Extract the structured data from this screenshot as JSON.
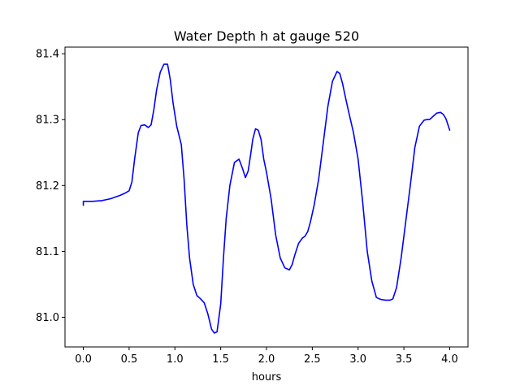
{
  "chart_data": {
    "type": "line",
    "title": "Water Depth h at gauge 520",
    "xlabel": "hours",
    "ylabel": "",
    "xlim": [
      -0.2,
      4.2
    ],
    "ylim": [
      80.955,
      81.41
    ],
    "xticks": [
      0.0,
      0.5,
      1.0,
      1.5,
      2.0,
      2.5,
      3.0,
      3.5,
      4.0
    ],
    "xtick_labels": [
      "0.0",
      "0.5",
      "1.0",
      "1.5",
      "2.0",
      "2.5",
      "3.0",
      "3.5",
      "4.0"
    ],
    "yticks": [
      81.0,
      81.1,
      81.2,
      81.3,
      81.4
    ],
    "ytick_labels": [
      "81.0",
      "81.1",
      "81.2",
      "81.3",
      "81.4"
    ],
    "grid": false,
    "series": [
      {
        "color": "#0000ff",
        "x": [
          0.0,
          0.0,
          0.1,
          0.2,
          0.3,
          0.4,
          0.45,
          0.5,
          0.53,
          0.56,
          0.6,
          0.63,
          0.67,
          0.71,
          0.74,
          0.77,
          0.8,
          0.84,
          0.88,
          0.92,
          0.95,
          0.98,
          1.02,
          1.07,
          1.1,
          1.13,
          1.16,
          1.2,
          1.24,
          1.28,
          1.32,
          1.36,
          1.4,
          1.43,
          1.46,
          1.5,
          1.53,
          1.56,
          1.6,
          1.65,
          1.7,
          1.74,
          1.77,
          1.8,
          1.83,
          1.85,
          1.88,
          1.91,
          1.94,
          1.97,
          2.0,
          2.05,
          2.1,
          2.15,
          2.2,
          2.25,
          2.28,
          2.31,
          2.35,
          2.39,
          2.42,
          2.45,
          2.48,
          2.52,
          2.57,
          2.62,
          2.67,
          2.72,
          2.77,
          2.8,
          2.83,
          2.86,
          2.9,
          2.95,
          3.0,
          3.05,
          3.1,
          3.15,
          3.2,
          3.25,
          3.3,
          3.35,
          3.38,
          3.42,
          3.47,
          3.52,
          3.57,
          3.62,
          3.67,
          3.72,
          3.75,
          3.78,
          3.82,
          3.86,
          3.9,
          3.93,
          3.96,
          4.0
        ],
        "y": [
          81.17,
          81.176,
          81.176,
          81.177,
          81.18,
          81.185,
          81.188,
          81.192,
          81.205,
          81.24,
          81.28,
          81.291,
          81.292,
          81.288,
          81.292,
          81.315,
          81.345,
          81.372,
          81.384,
          81.384,
          81.36,
          81.325,
          81.29,
          81.262,
          81.21,
          81.14,
          81.09,
          81.05,
          81.033,
          81.028,
          81.022,
          81.005,
          80.982,
          80.976,
          80.978,
          81.02,
          81.09,
          81.15,
          81.2,
          81.235,
          81.24,
          81.225,
          81.212,
          81.222,
          81.25,
          81.27,
          81.286,
          81.284,
          81.27,
          81.24,
          81.22,
          81.18,
          81.125,
          81.09,
          81.075,
          81.072,
          81.08,
          81.095,
          81.112,
          81.12,
          81.123,
          81.13,
          81.145,
          81.17,
          81.21,
          81.265,
          81.32,
          81.358,
          81.373,
          81.37,
          81.355,
          81.335,
          81.31,
          81.28,
          81.24,
          81.175,
          81.1,
          81.055,
          81.03,
          81.027,
          81.026,
          81.026,
          81.028,
          81.045,
          81.09,
          81.145,
          81.2,
          81.258,
          81.29,
          81.299,
          81.3,
          81.3,
          81.305,
          81.31,
          81.311,
          81.308,
          81.301,
          81.284
        ]
      }
    ]
  }
}
